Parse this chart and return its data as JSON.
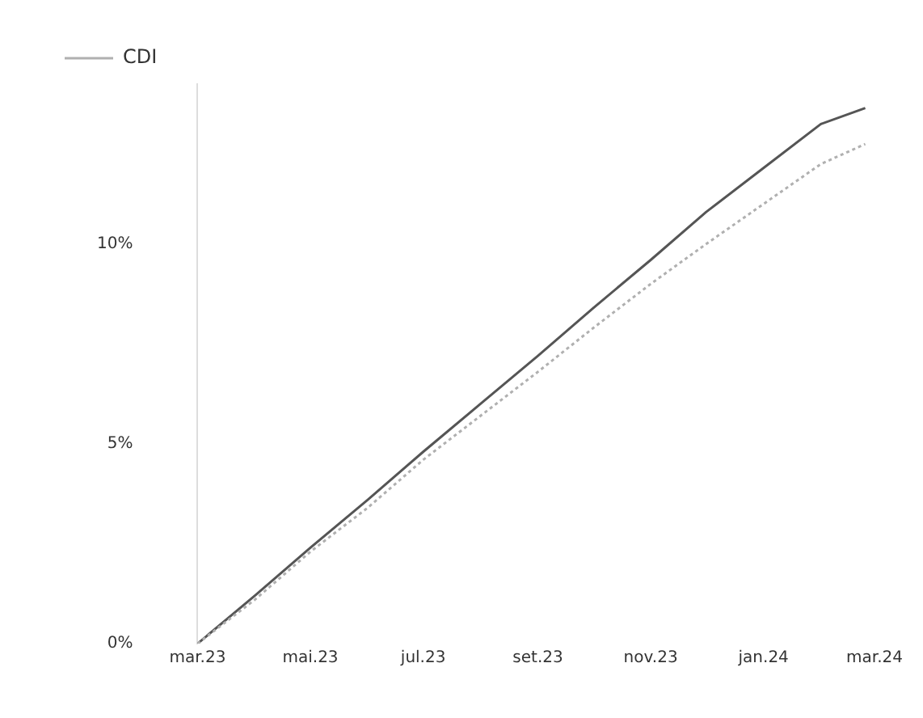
{
  "chart_data": {
    "type": "line",
    "x": [
      "2023-03-01",
      "2023-04-01",
      "2023-05-01",
      "2023-06-01",
      "2023-07-01",
      "2023-08-01",
      "2023-09-01",
      "2023-10-01",
      "2023-11-01",
      "2023-12-01",
      "2024-01-01",
      "2024-02-01",
      "2024-02-25"
    ],
    "series": [
      {
        "name": "CDI",
        "color": "#b0b0b0",
        "line_style": "dotted",
        "values": [
          0,
          1.1,
          2.3,
          3.4,
          4.6,
          5.7,
          6.8,
          7.9,
          9.0,
          10.0,
          11.0,
          12.0,
          12.5
        ]
      },
      {
        "color": "#555555",
        "line_style": "solid",
        "values": [
          0,
          1.2,
          2.4,
          3.6,
          4.8,
          6.0,
          7.2,
          8.4,
          9.6,
          10.8,
          11.9,
          13.0,
          13.4
        ]
      }
    ],
    "xlim": [
      "2023-03-01",
      "2024-03-01"
    ],
    "xticks": [
      {
        "value": "2023-03-01",
        "label": "mar.23"
      },
      {
        "value": "2023-05-01",
        "label": "mai.23"
      },
      {
        "value": "2023-07-01",
        "label": "jul.23"
      },
      {
        "value": "2023-09-01",
        "label": "set.23"
      },
      {
        "value": "2023-11-01",
        "label": "nov.23"
      },
      {
        "value": "2024-01-01",
        "label": "jan.24"
      },
      {
        "value": "2024-03-01",
        "label": "mar.24"
      }
    ],
    "ylim": [
      0,
      14
    ],
    "yticks": [
      {
        "value": 0,
        "label": "0%"
      },
      {
        "value": 5,
        "label": "5%"
      },
      {
        "value": 10,
        "label": "10%"
      }
    ],
    "grid": false,
    "legend": "top left",
    "marker": "none"
  }
}
